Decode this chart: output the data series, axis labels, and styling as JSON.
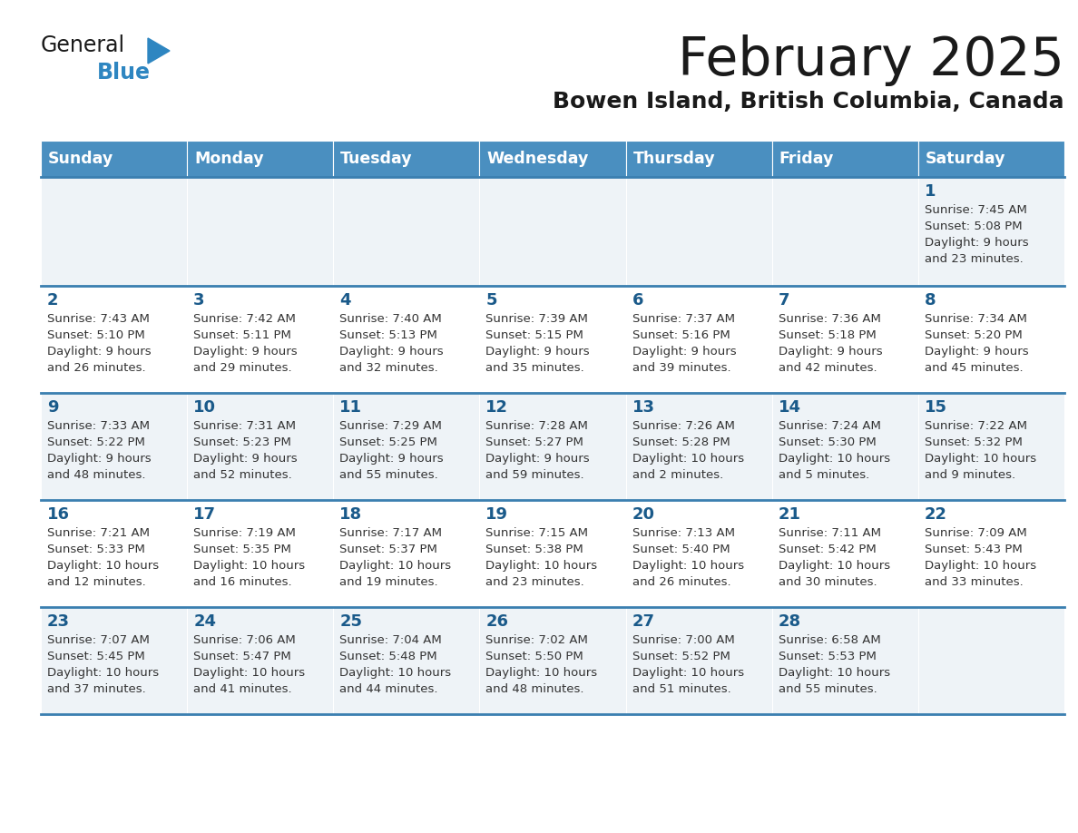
{
  "title": "February 2025",
  "subtitle": "Bowen Island, British Columbia, Canada",
  "days_of_week": [
    "Sunday",
    "Monday",
    "Tuesday",
    "Wednesday",
    "Thursday",
    "Friday",
    "Saturday"
  ],
  "header_bg": "#4a8fc0",
  "header_text": "#ffffff",
  "row_bg_even": "#eef3f7",
  "row_bg_odd": "#ffffff",
  "cell_border": "#3a7fb0",
  "day_number_color": "#1a5a8a",
  "info_text_color": "#333333",
  "logo_general_color": "#1a1a1a",
  "logo_blue_color": "#2e86c1",
  "logo_triangle_color": "#2e86c1",
  "title_color": "#1a1a1a",
  "subtitle_color": "#1a1a1a",
  "calendar_data": [
    [
      null,
      null,
      null,
      null,
      null,
      null,
      {
        "day": 1,
        "sunrise": "7:45 AM",
        "sunset": "5:08 PM",
        "daylight": "9 hours and 23 minutes."
      }
    ],
    [
      {
        "day": 2,
        "sunrise": "7:43 AM",
        "sunset": "5:10 PM",
        "daylight": "9 hours and 26 minutes."
      },
      {
        "day": 3,
        "sunrise": "7:42 AM",
        "sunset": "5:11 PM",
        "daylight": "9 hours and 29 minutes."
      },
      {
        "day": 4,
        "sunrise": "7:40 AM",
        "sunset": "5:13 PM",
        "daylight": "9 hours and 32 minutes."
      },
      {
        "day": 5,
        "sunrise": "7:39 AM",
        "sunset": "5:15 PM",
        "daylight": "9 hours and 35 minutes."
      },
      {
        "day": 6,
        "sunrise": "7:37 AM",
        "sunset": "5:16 PM",
        "daylight": "9 hours and 39 minutes."
      },
      {
        "day": 7,
        "sunrise": "7:36 AM",
        "sunset": "5:18 PM",
        "daylight": "9 hours and 42 minutes."
      },
      {
        "day": 8,
        "sunrise": "7:34 AM",
        "sunset": "5:20 PM",
        "daylight": "9 hours and 45 minutes."
      }
    ],
    [
      {
        "day": 9,
        "sunrise": "7:33 AM",
        "sunset": "5:22 PM",
        "daylight": "9 hours and 48 minutes."
      },
      {
        "day": 10,
        "sunrise": "7:31 AM",
        "sunset": "5:23 PM",
        "daylight": "9 hours and 52 minutes."
      },
      {
        "day": 11,
        "sunrise": "7:29 AM",
        "sunset": "5:25 PM",
        "daylight": "9 hours and 55 minutes."
      },
      {
        "day": 12,
        "sunrise": "7:28 AM",
        "sunset": "5:27 PM",
        "daylight": "9 hours and 59 minutes."
      },
      {
        "day": 13,
        "sunrise": "7:26 AM",
        "sunset": "5:28 PM",
        "daylight": "10 hours and 2 minutes."
      },
      {
        "day": 14,
        "sunrise": "7:24 AM",
        "sunset": "5:30 PM",
        "daylight": "10 hours and 5 minutes."
      },
      {
        "day": 15,
        "sunrise": "7:22 AM",
        "sunset": "5:32 PM",
        "daylight": "10 hours and 9 minutes."
      }
    ],
    [
      {
        "day": 16,
        "sunrise": "7:21 AM",
        "sunset": "5:33 PM",
        "daylight": "10 hours and 12 minutes."
      },
      {
        "day": 17,
        "sunrise": "7:19 AM",
        "sunset": "5:35 PM",
        "daylight": "10 hours and 16 minutes."
      },
      {
        "day": 18,
        "sunrise": "7:17 AM",
        "sunset": "5:37 PM",
        "daylight": "10 hours and 19 minutes."
      },
      {
        "day": 19,
        "sunrise": "7:15 AM",
        "sunset": "5:38 PM",
        "daylight": "10 hours and 23 minutes."
      },
      {
        "day": 20,
        "sunrise": "7:13 AM",
        "sunset": "5:40 PM",
        "daylight": "10 hours and 26 minutes."
      },
      {
        "day": 21,
        "sunrise": "7:11 AM",
        "sunset": "5:42 PM",
        "daylight": "10 hours and 30 minutes."
      },
      {
        "day": 22,
        "sunrise": "7:09 AM",
        "sunset": "5:43 PM",
        "daylight": "10 hours and 33 minutes."
      }
    ],
    [
      {
        "day": 23,
        "sunrise": "7:07 AM",
        "sunset": "5:45 PM",
        "daylight": "10 hours and 37 minutes."
      },
      {
        "day": 24,
        "sunrise": "7:06 AM",
        "sunset": "5:47 PM",
        "daylight": "10 hours and 41 minutes."
      },
      {
        "day": 25,
        "sunrise": "7:04 AM",
        "sunset": "5:48 PM",
        "daylight": "10 hours and 44 minutes."
      },
      {
        "day": 26,
        "sunrise": "7:02 AM",
        "sunset": "5:50 PM",
        "daylight": "10 hours and 48 minutes."
      },
      {
        "day": 27,
        "sunrise": "7:00 AM",
        "sunset": "5:52 PM",
        "daylight": "10 hours and 51 minutes."
      },
      {
        "day": 28,
        "sunrise": "6:58 AM",
        "sunset": "5:53 PM",
        "daylight": "10 hours and 55 minutes."
      },
      null
    ]
  ]
}
